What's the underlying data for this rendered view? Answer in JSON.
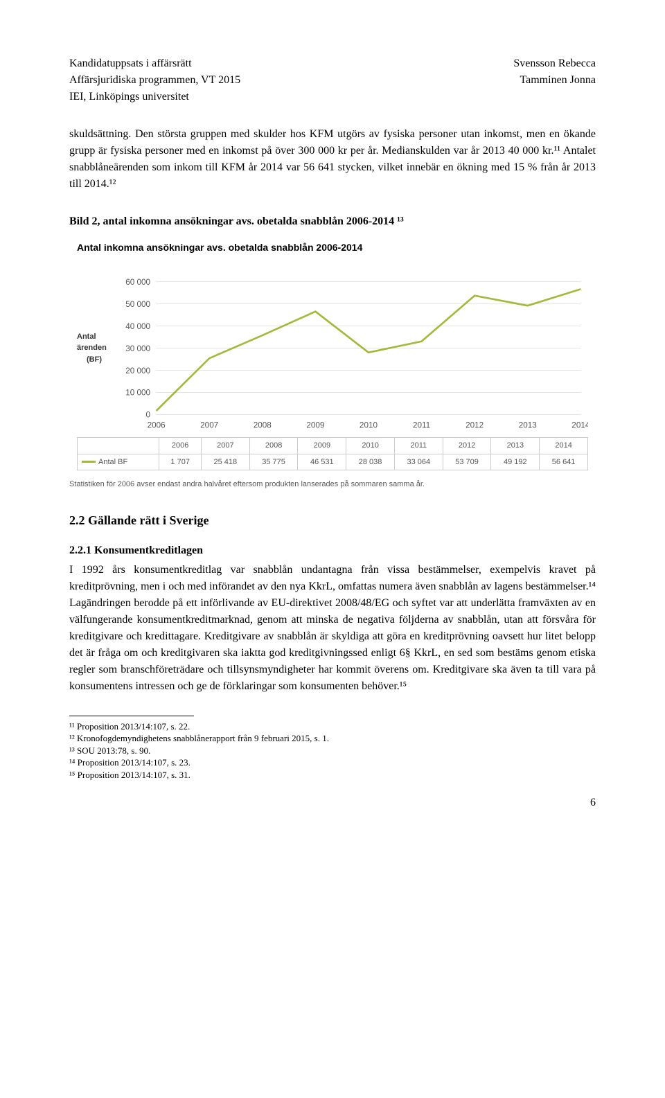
{
  "header": {
    "left_line1": "Kandidatuppsats i affärsrätt",
    "left_line2": "Affärsjuridiska programmen, VT 2015",
    "left_line3": "IEI, Linköpings universitet",
    "right_line1": "Svensson Rebecca",
    "right_line2": "Tamminen Jonna"
  },
  "para1": "skuldsättning. Den största gruppen med skulder hos KFM utgörs av fysiska personer utan inkomst, men en ökande grupp är fysiska personer med en inkomst på över 300 000 kr per år. Medianskulden var år 2013 40 000 kr.¹¹ Antalet snabblåneärenden som inkom till KFM år 2014 var 56 641 stycken, vilket innebär en ökning med 15 % från år 2013 till 2014.¹²",
  "figure_caption": "Bild 2, antal inkomna ansökningar avs. obetalda snabblån 2006-2014 ¹³",
  "chart": {
    "type": "line",
    "title": "Antal inkomna ansökningar avs. obetalda snabblån 2006-2014",
    "ylabel_line1": "Antal ärenden",
    "ylabel_line2": "(BF)",
    "years": [
      "2006",
      "2007",
      "2008",
      "2009",
      "2010",
      "2011",
      "2012",
      "2013",
      "2014"
    ],
    "values": [
      1707,
      25418,
      35775,
      46531,
      28038,
      33064,
      53709,
      49192,
      56641
    ],
    "yticks": [
      0,
      10000,
      20000,
      30000,
      40000,
      50000,
      60000
    ],
    "ytick_labels": [
      "0",
      "10 000",
      "20 000",
      "30 000",
      "40 000",
      "50 000",
      "60 000"
    ],
    "ylim": [
      0,
      65000
    ],
    "line_color": "#a4b83a",
    "grid_color": "#e5e5e5",
    "background_color": "#ffffff",
    "series_label": "Antal BF",
    "footnote": "Statistiken för 2006 avser endast andra halvåret eftersom produkten lanserades på sommaren samma år."
  },
  "section_heading": "2.2 Gällande rätt i Sverige",
  "subsection_heading": "2.2.1 Konsumentkreditlagen",
  "para2": "I 1992 års konsumentkreditlag var snabblån undantagna från vissa bestämmelser, exempelvis kravet på kreditprövning, men i och med införandet av den nya KkrL, omfattas numera även snabblån av lagens bestämmelser.¹⁴ Lagändringen berodde på ett införlivande av EU-direktivet 2008/48/EG och syftet var att underlätta framväxten av en välfungerande konsumentkreditmarknad, genom att minska de negativa följderna av snabblån, utan att försvåra för kreditgivare och kredittagare. Kreditgivare av snabblån är skyldiga att göra en kreditprövning oavsett hur litet belopp det är fråga om och kreditgivaren ska iaktta god kreditgivningssed enligt 6§ KkrL, en sed som bestäms genom etiska regler som branschföreträdare och tillsynsmyndigheter har kommit överens om. Kreditgivare ska även ta till vara på konsumentens intressen och ge de förklaringar som konsumenten behöver.¹⁵",
  "footnotes": {
    "f11": "¹¹ Proposition 2013/14:107, s. 22.",
    "f12": "¹² Kronofogdemyndighetens snabblånerapport från 9 februari 2015, s. 1.",
    "f13": "¹³ SOU 2013:78, s. 90.",
    "f14": "¹⁴ Proposition 2013/14:107, s. 23.",
    "f15": "¹⁵ Proposition 2013/14:107, s. 31."
  },
  "page_number": "6"
}
